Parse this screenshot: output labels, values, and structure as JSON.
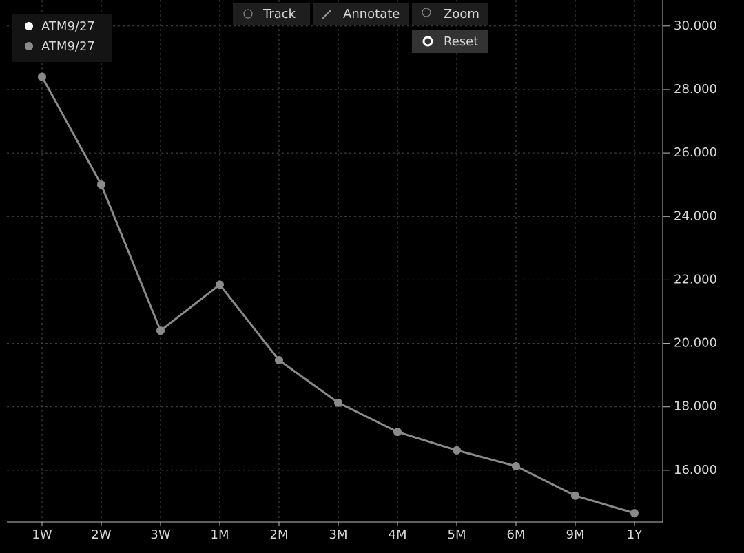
{
  "toolbar": {
    "track": "Track",
    "annotate": "Annotate",
    "zoom": "Zoom",
    "reset": "Reset"
  },
  "chart_data": {
    "type": "line",
    "categories": [
      "1W",
      "2W",
      "3W",
      "1M",
      "2M",
      "3M",
      "4M",
      "5M",
      "6M",
      "9M",
      "1Y"
    ],
    "series": [
      {
        "name": "ATM9/27",
        "color": "#8a8a8a",
        "values": [
          28.4,
          25.0,
          20.4,
          21.85,
          19.47,
          18.13,
          17.21,
          16.63,
          16.13,
          15.2,
          14.65
        ]
      }
    ],
    "extra_legend": [
      {
        "name": "ATM9/27",
        "color": "#ffffff"
      }
    ],
    "ylim": [
      14.37,
      30.82
    ],
    "yticks": [
      {
        "value": 16,
        "label": "16.000"
      },
      {
        "value": 18,
        "label": "18.000"
      },
      {
        "value": 20,
        "label": "20.000"
      },
      {
        "value": 22,
        "label": "22.000"
      },
      {
        "value": 24,
        "label": "24.000"
      },
      {
        "value": 26,
        "label": "26.000"
      },
      {
        "value": 28,
        "label": "28.000"
      },
      {
        "value": 30,
        "label": "30.000"
      }
    ],
    "grid": true
  }
}
